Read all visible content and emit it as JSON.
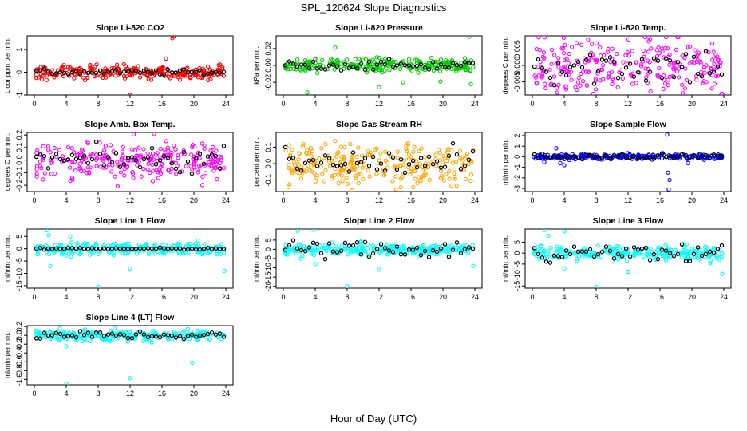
{
  "title": "SPL_120624  Slope Diagnostics",
  "xlabel": "Hour of Day (UTC)",
  "chart_data": [
    {
      "type": "scatter",
      "title": "Slope Li-820 CO2",
      "ylabel": "Licor ppm per min.",
      "color": "#ff0000",
      "xlim": [
        0,
        24
      ],
      "ylim": [
        -1.0,
        1.6
      ],
      "yticks": [
        "-1",
        "0",
        "1"
      ],
      "ytick_values": [
        -1,
        0,
        1
      ],
      "xticks": [
        0,
        4,
        8,
        12,
        16,
        20,
        24
      ],
      "noise": 0.15,
      "outliers": [
        [
          12,
          -1.0
        ],
        [
          16.5,
          0.6
        ],
        [
          17.3,
          1.5
        ],
        [
          17.5,
          1.6
        ]
      ],
      "black_noise": 0.06
    },
    {
      "type": "scatter",
      "title": "Slope Li-820 Pressure",
      "ylabel": "kPa per min.",
      "color": "#00cc00",
      "xlim": [
        0,
        24
      ],
      "ylim": [
        -0.035,
        0.035
      ],
      "yticks": [
        "-0.02",
        "0.00",
        "0.02"
      ],
      "ytick_values": [
        -0.02,
        0,
        0.02
      ],
      "xticks": [
        0,
        4,
        8,
        12,
        16,
        20,
        24
      ],
      "noise": 0.004,
      "outliers": [
        [
          3,
          -0.032
        ],
        [
          6.5,
          0.021
        ],
        [
          12,
          -0.026
        ],
        [
          15,
          -0.02
        ],
        [
          19.7,
          -0.019
        ],
        [
          23.3,
          0.034
        ],
        [
          23.5,
          -0.022
        ]
      ],
      "black_noise": 0.003
    },
    {
      "type": "scatter",
      "title": "Slope Li-820 Temp.",
      "ylabel": "degrees C per min.",
      "color": "#ff00ff",
      "xlim": [
        0,
        24
      ],
      "ylim": [
        -0.009,
        0.009
      ],
      "yticks": [
        "-0.005",
        "0.000",
        "0.005"
      ],
      "ytick_values": [
        -0.005,
        0,
        0.005
      ],
      "xticks": [
        0,
        4,
        8,
        12,
        16,
        20,
        24
      ],
      "noise": 0.004,
      "outliers": [],
      "black_noise": 0.003
    },
    {
      "type": "scatter",
      "title": "Slope Amb. Box Temp.",
      "ylabel": "degrees C per min.",
      "color": "#ff00ff",
      "xlim": [
        0,
        24
      ],
      "ylim": [
        -0.25,
        0.22
      ],
      "yticks": [
        "-0.2",
        "-0.1",
        "0.0",
        "0.1",
        "0.2"
      ],
      "ytick_values": [
        -0.2,
        -0.1,
        0,
        0.1,
        0.2
      ],
      "xticks": [
        0,
        4,
        8,
        12,
        16,
        20,
        24
      ],
      "noise": 0.08,
      "outliers": [],
      "black_noise": 0.05
    },
    {
      "type": "scatter",
      "title": "Slope Gas Stream RH",
      "ylabel": "percent per min.",
      "color": "#ffa500",
      "xlim": [
        0,
        24
      ],
      "ylim": [
        -0.17,
        0.19
      ],
      "yticks": [
        "-0.1",
        "0.0",
        "0.1"
      ],
      "ytick_values": [
        -0.1,
        0,
        0.1
      ],
      "xticks": [
        0,
        4,
        8,
        12,
        16,
        20,
        24
      ],
      "noise": 0.06,
      "outliers": [],
      "black_noise": 0.05
    },
    {
      "type": "scatter",
      "title": "Slope Sample Flow",
      "ylabel": "ml/min per min.",
      "color": "#0000ff",
      "xlim": [
        0,
        24
      ],
      "ylim": [
        -3.3,
        2.3
      ],
      "yticks": [
        "-3",
        "-2",
        "-1",
        "0",
        "1",
        "2"
      ],
      "ytick_values": [
        -3,
        -2,
        -1,
        0,
        1,
        2
      ],
      "xticks": [
        0,
        4,
        8,
        12,
        16,
        20,
        24
      ],
      "noise": 0.12,
      "outliers": [
        [
          1.5,
          -0.5
        ],
        [
          3,
          0.8
        ],
        [
          3.5,
          -0.6
        ],
        [
          4,
          -0.8
        ],
        [
          16.9,
          2.1
        ],
        [
          17,
          -1.5
        ],
        [
          17.1,
          -3.1
        ],
        [
          17.2,
          -2.2
        ],
        [
          19.5,
          -0.6
        ]
      ],
      "black_noise": 0.15
    },
    {
      "type": "scatter",
      "title": "Slope Line 1 Flow",
      "ylabel": "ml/min per min.",
      "color": "#00ffff",
      "xlim": [
        0,
        24
      ],
      "ylim": [
        -16,
        8
      ],
      "yticks": [
        "-15",
        "-10",
        "-5",
        "0",
        "5"
      ],
      "ytick_values": [
        -15,
        -10,
        -5,
        0,
        5
      ],
      "xticks": [
        0,
        4,
        8,
        12,
        16,
        20,
        24
      ],
      "noise": 1.2,
      "outliers": [
        [
          1.5,
          7.5
        ],
        [
          1.8,
          5.5
        ],
        [
          2,
          -7
        ],
        [
          4.5,
          5
        ],
        [
          8,
          -15.5
        ],
        [
          12,
          -8
        ],
        [
          23.8,
          -9
        ]
      ],
      "black_noise": 0.2
    },
    {
      "type": "scatter",
      "title": "Slope Line 2 Flow",
      "ylabel": "ml/min per min.",
      "color": "#00ffff",
      "xlim": [
        0,
        24
      ],
      "ylim": [
        -21,
        11
      ],
      "yticks": [
        "-20",
        "-15",
        "-10",
        "-5",
        "0",
        "5"
      ],
      "ytick_values": [
        -20,
        -15,
        -10,
        -5,
        0,
        5
      ],
      "xticks": [
        0,
        4,
        8,
        12,
        16,
        20,
        24
      ],
      "noise": 1.5,
      "outliers": [
        [
          1.8,
          10
        ],
        [
          2.2,
          -5
        ],
        [
          3.8,
          10.5
        ],
        [
          4,
          -8
        ],
        [
          8,
          -20
        ],
        [
          12,
          -11
        ],
        [
          23.8,
          -9
        ]
      ],
      "black_noise": 2.5
    },
    {
      "type": "scatter",
      "title": "Slope Line 3 Flow",
      "ylabel": "ml/min per min.",
      "color": "#00ffff",
      "xlim": [
        0,
        24
      ],
      "ylim": [
        -16,
        11
      ],
      "yticks": [
        "-15",
        "-10",
        "-5",
        "0",
        "5"
      ],
      "ytick_values": [
        -15,
        -10,
        -5,
        0,
        5
      ],
      "xticks": [
        0,
        4,
        8,
        12,
        16,
        20,
        24
      ],
      "noise": 1.5,
      "outliers": [
        [
          1.5,
          10.5
        ],
        [
          2,
          8
        ],
        [
          4,
          10
        ],
        [
          4,
          -7
        ],
        [
          8,
          -15.5
        ],
        [
          12,
          -8.5
        ],
        [
          23.8,
          -9.5
        ]
      ],
      "black_noise": 2.0
    },
    {
      "type": "scatter",
      "title": "Slope Line 4 (LT) Flow",
      "ylabel": "ml/min per min.",
      "color": "#00ffff",
      "xlim": [
        0,
        24
      ],
      "ylim": [
        -1.12,
        0.22
      ],
      "yticks": [
        "-1.0",
        "-0.8",
        "-0.6",
        "-0.4",
        "-0.2",
        "0.0",
        "0.2"
      ],
      "ytick_values": [
        -1.0,
        -0.8,
        -0.6,
        -0.4,
        -0.2,
        0,
        0.2
      ],
      "xticks": [
        0,
        4,
        8,
        12,
        16,
        20,
        24
      ],
      "noise": 0.06,
      "outliers": [
        [
          4,
          -1.1
        ],
        [
          12,
          -0.97
        ],
        [
          19.8,
          -0.62
        ],
        [
          4,
          -0.25
        ]
      ],
      "black_noise": 0.05
    }
  ]
}
